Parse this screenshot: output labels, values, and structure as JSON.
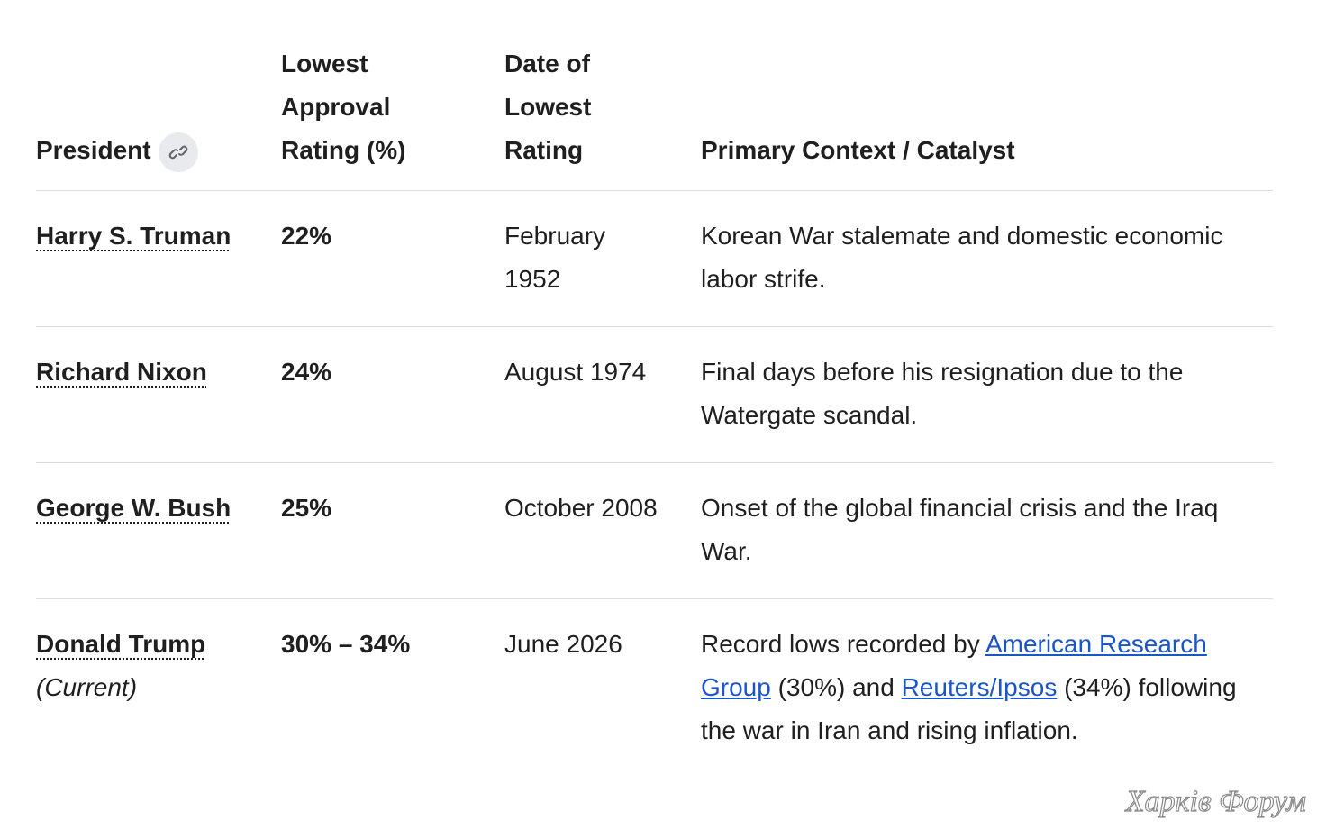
{
  "table": {
    "columns": [
      "President",
      "Lowest Approval Rating (%)",
      "Date of Lowest Rating",
      "Primary Context / Catalyst"
    ],
    "rows": [
      {
        "president": "Harry S. Truman",
        "lowest": "22%",
        "date": "February 1952",
        "context": [
          {
            "text": "Korean War stalemate and domestic economic labor strife."
          }
        ]
      },
      {
        "president": "Richard Nixon",
        "lowest": "24%",
        "date": "August 1974",
        "context": [
          {
            "text": "Final days before his resignation due to the Watergate scandal."
          }
        ]
      },
      {
        "president": "George W. Bush",
        "lowest": "25%",
        "date": "October 2008",
        "context": [
          {
            "text": "Onset of the global financial crisis and the Iraq War."
          }
        ]
      },
      {
        "president": "Donald Trump",
        "note": "(Current)",
        "lowest": "30% – 34%",
        "date": "June 2026",
        "context": [
          {
            "text": "Record lows recorded by "
          },
          {
            "text": "American Research Group",
            "link": true
          },
          {
            "text": " (30%) and "
          },
          {
            "text": "Reuters/Ipsos",
            "link": true
          },
          {
            "text": " (34%) following the war in Iran and rising inflation."
          }
        ]
      }
    ]
  },
  "watermark": "Харків Форум"
}
